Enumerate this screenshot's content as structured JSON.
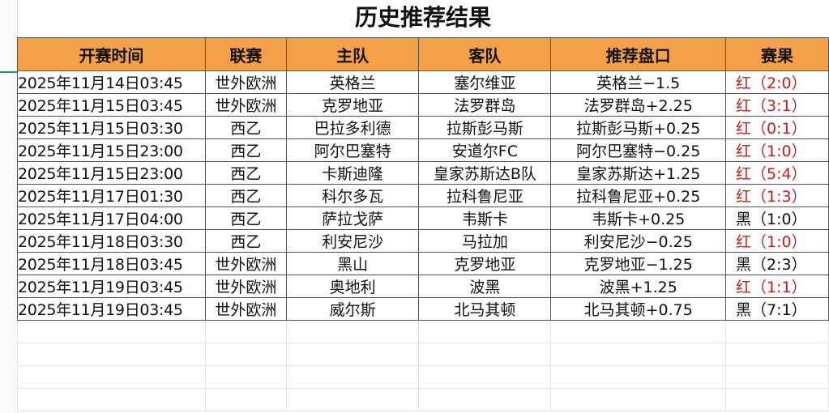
{
  "title": "历史推荐结果",
  "headers": [
    "开赛时间",
    "联赛",
    "主队",
    "客队",
    "推荐盘口",
    "赛果"
  ],
  "colors": {
    "header_bg": "#f4a048",
    "red_result": "#c0201e"
  },
  "rows": [
    [
      "2025年11月14日03:45",
      "世外欧洲",
      "英格兰",
      "塞尔维亚",
      "英格兰−1.5",
      "红（2:0）"
    ],
    [
      "2025年11月15日03:45",
      "世外欧洲",
      "克罗地亚",
      "法罗群岛",
      "法罗群岛+2.25",
      "红（3:1）"
    ],
    [
      "2025年11月15日03:30",
      "西乙",
      "巴拉多利德",
      "拉斯彭马斯",
      "拉斯彭马斯+0.25",
      "红（0:1）"
    ],
    [
      "2025年11月15日23:00",
      "西乙",
      "阿尔巴塞特",
      "安道尔FC",
      "阿尔巴塞特−0.25",
      "红（1:0）"
    ],
    [
      "2025年11月15日23:00",
      "西乙",
      "卡斯迪隆",
      "皇家苏斯达B队",
      "皇家苏斯达+1.25",
      "红（5:4）"
    ],
    [
      "2025年11月17日01:30",
      "西乙",
      "科尔多瓦",
      "拉科鲁尼亚",
      "拉科鲁尼亚+0.25",
      "红（1:3）"
    ],
    [
      "2025年11月17日04:00",
      "西乙",
      "萨拉戈萨",
      "韦斯卡",
      "韦斯卡+0.25",
      "黑（1:0）"
    ],
    [
      "2025年11月18日03:30",
      "西乙",
      "利安尼沙",
      "马拉加",
      "利安尼沙−0.25",
      "红（1:0）"
    ],
    [
      "2025年11月18日03:45",
      "世外欧洲",
      "黑山",
      "克罗地亚",
      "克罗地亚−1.25",
      "黑（2:3）"
    ],
    [
      "2025年11月19日03:45",
      "世外欧洲",
      "奥地利",
      "波黑",
      "波黑+1.25",
      "红（1:1）"
    ],
    [
      "2025年11月19日03:45",
      "世外欧洲",
      "威尔斯",
      "北马其顿",
      "北马其顿+0.75",
      "黑（7:1）"
    ]
  ]
}
